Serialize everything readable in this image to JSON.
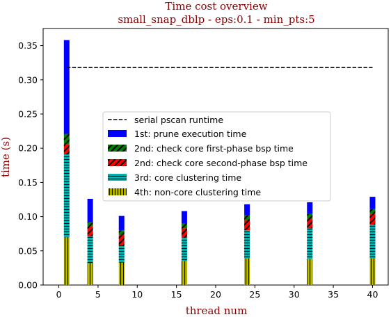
{
  "chart_data": {
    "type": "bar",
    "stacked": true,
    "title": "Time cost overview",
    "subtitle": "small_snap_dblp - eps:0.1 - min_pts:5",
    "xlabel": "thread num",
    "ylabel": "time (s)",
    "xlim": [
      -2.0,
      42.0
    ],
    "ylim": [
      0.0,
      0.375
    ],
    "xticks": [
      0,
      5,
      10,
      15,
      20,
      25,
      30,
      35,
      40
    ],
    "xtick_labels": [
      "0",
      "5",
      "10",
      "15",
      "20",
      "25",
      "30",
      "35",
      "40"
    ],
    "yticks": [
      0.0,
      0.05,
      0.1,
      0.15,
      0.2,
      0.25,
      0.3,
      0.35
    ],
    "ytick_labels": [
      "0.00",
      "0.05",
      "0.10",
      "0.15",
      "0.20",
      "0.25",
      "0.30",
      "0.35"
    ],
    "x": [
      1,
      4,
      8,
      16,
      24,
      32,
      40
    ],
    "series": [
      {
        "name": "4th: non-core clustering time",
        "values": [
          0.07,
          0.032,
          0.033,
          0.035,
          0.039,
          0.038,
          0.039
        ],
        "color": "#bfbf00",
        "hatch": "vertical-lines"
      },
      {
        "name": "3rd: core clustering time",
        "values": [
          0.121,
          0.039,
          0.025,
          0.034,
          0.041,
          0.045,
          0.049
        ],
        "color": "#00bfbf",
        "hatch": "horizontal-lines"
      },
      {
        "name": "2nd: check core second-phase bsp time",
        "values": [
          0.015,
          0.015,
          0.015,
          0.014,
          0.015,
          0.014,
          0.016
        ],
        "color": "#ff0000",
        "hatch": "diagonal-lines"
      },
      {
        "name": "2nd: check core first-phase bsp time",
        "values": [
          0.015,
          0.006,
          0.007,
          0.007,
          0.007,
          0.007,
          0.007
        ],
        "color": "#008000",
        "hatch": "diagonal-lines"
      },
      {
        "name": "1st: prune execution time",
        "values": [
          0.137,
          0.034,
          0.021,
          0.018,
          0.016,
          0.017,
          0.018
        ],
        "color": "#0000ff",
        "hatch": "none"
      }
    ],
    "reference_line": {
      "name": "serial pscan runtime",
      "y": 0.318,
      "x_range": [
        1,
        40
      ],
      "style": "dashed",
      "color": "#000000"
    },
    "legend": {
      "placement": "center",
      "entries": [
        {
          "label": "serial pscan runtime",
          "kind": "line"
        },
        {
          "label": "1st: prune execution time",
          "kind": "patch",
          "color": "#0000ff",
          "hatch": "none"
        },
        {
          "label": "2nd: check core first-phase bsp time",
          "kind": "patch",
          "color": "#008000",
          "hatch": "diagonal-lines"
        },
        {
          "label": "2nd: check core second-phase bsp time",
          "kind": "patch",
          "color": "#ff0000",
          "hatch": "diagonal-lines"
        },
        {
          "label": "3rd: core clustering time",
          "kind": "patch",
          "color": "#00bfbf",
          "hatch": "horizontal-lines"
        },
        {
          "label": "4th: non-core clustering time",
          "kind": "patch",
          "color": "#bfbf00",
          "hatch": "vertical-lines"
        }
      ]
    },
    "grid": false
  }
}
